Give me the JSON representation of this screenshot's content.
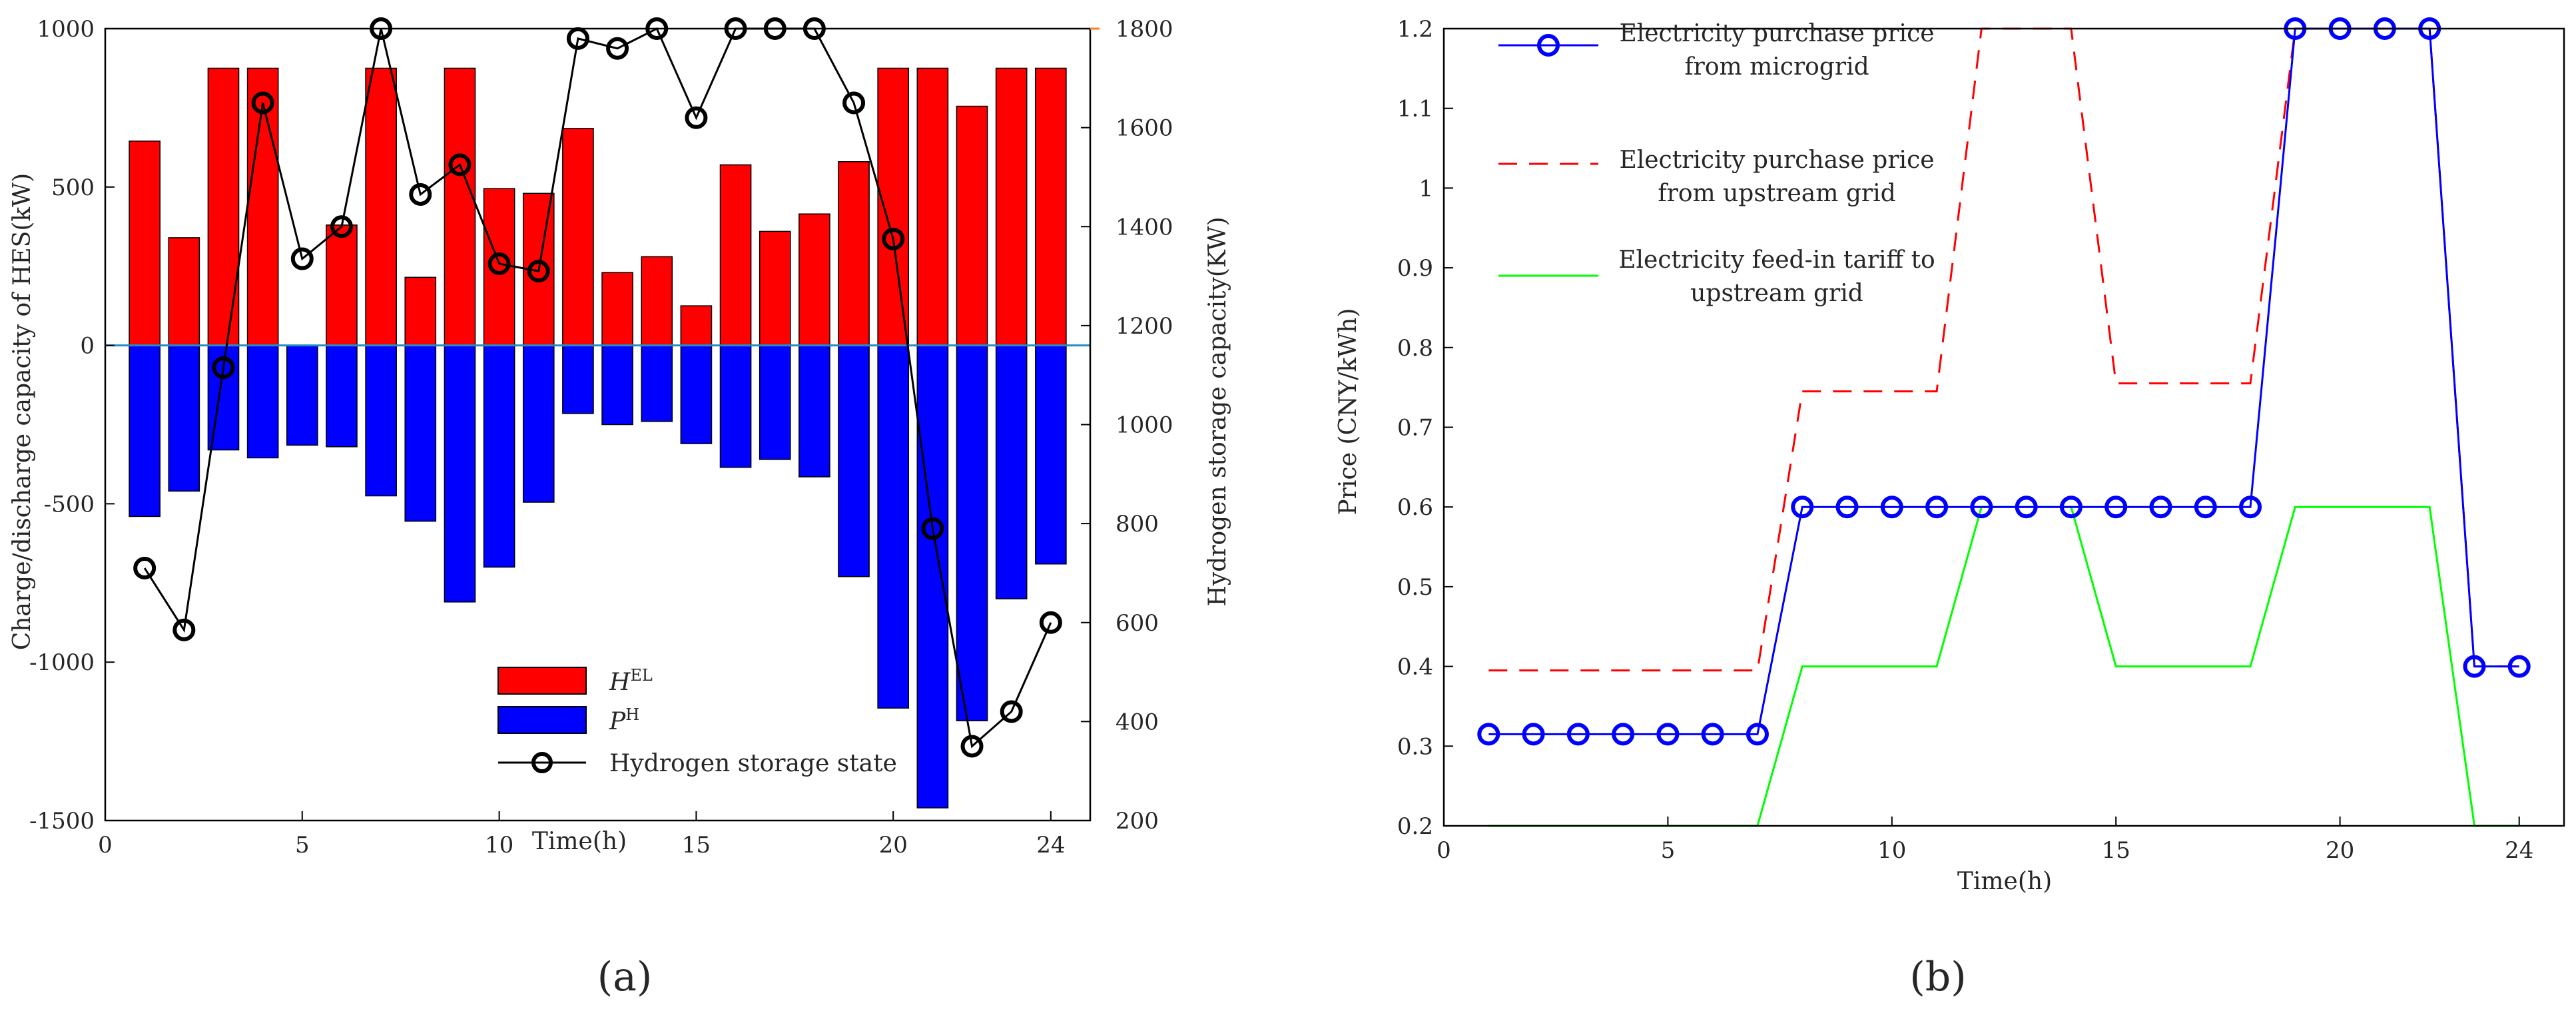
{
  "chart_data": [
    {
      "panel_label": "(a)",
      "type": "bar+line",
      "xlabel": "Time(h)",
      "ylabel": "Charge/discharge capacity of HES(kW)",
      "y2label": "Hydrogen storage capacity(KW)",
      "xlim": [
        0,
        25
      ],
      "ylim": [
        -1500,
        1000
      ],
      "y2lim": [
        200,
        1800
      ],
      "xticks": [
        0,
        5,
        10,
        15,
        20,
        24
      ],
      "yticks": [
        1000,
        500,
        0,
        -500,
        -1000,
        -1500
      ],
      "y2ticks": [
        1800,
        1600,
        1400,
        1200,
        1000,
        800,
        600,
        400,
        200
      ],
      "x": [
        1,
        2,
        3,
        4,
        5,
        6,
        7,
        8,
        9,
        10,
        11,
        12,
        13,
        14,
        15,
        16,
        17,
        18,
        19,
        20,
        21,
        22,
        23,
        24
      ],
      "series": [
        {
          "name": "H",
          "sup": "EL",
          "kind": "bar",
          "color": "#ff0000",
          "values": [
            645,
            340,
            875,
            875,
            0,
            380,
            875,
            215,
            875,
            495,
            480,
            685,
            230,
            280,
            125,
            570,
            360,
            415,
            580,
            875,
            875,
            755,
            875,
            875
          ]
        },
        {
          "name": "P",
          "sup": "H",
          "kind": "bar",
          "color": "#0000ff",
          "values": [
            -540,
            -460,
            -330,
            -355,
            -315,
            -320,
            -475,
            -555,
            -810,
            -700,
            -495,
            -215,
            -250,
            -240,
            -310,
            -385,
            -360,
            -415,
            -730,
            -1145,
            -1460,
            -1185,
            -800,
            -690
          ]
        },
        {
          "name": "Hydrogen storage state",
          "kind": "line",
          "axis": "right",
          "color": "#000000",
          "values": [
            710,
            585,
            1115,
            1650,
            1335,
            1400,
            1800,
            1465,
            1525,
            1325,
            1310,
            1780,
            1760,
            1800,
            1620,
            1800,
            1800,
            1800,
            1650,
            1375,
            790,
            350,
            420,
            600
          ]
        }
      ]
    },
    {
      "panel_label": "(b)",
      "type": "line",
      "xlabel": "Time(h)",
      "ylabel": "Price (CNY/kWh)",
      "xlim": [
        0,
        25
      ],
      "ylim": [
        0.2,
        1.2
      ],
      "xticks": [
        0,
        5,
        10,
        15,
        20,
        24
      ],
      "yticks": [
        "1.2",
        "1.1",
        "1",
        "0.9",
        "0.8",
        "0.7",
        "0.6",
        "0.5",
        "0.4",
        "0.3",
        "0.2"
      ],
      "x": [
        1,
        2,
        3,
        4,
        5,
        6,
        7,
        8,
        9,
        10,
        11,
        12,
        13,
        14,
        15,
        16,
        17,
        18,
        19,
        20,
        21,
        22,
        23,
        24
      ],
      "series": [
        {
          "name": "Electricity purchase price from microgrid",
          "legend_lines": [
            "Electricity purchase price",
            "from microgrid"
          ],
          "color": "#0000ff",
          "style": "solid-circle",
          "values": [
            0.315,
            0.315,
            0.315,
            0.315,
            0.315,
            0.315,
            0.315,
            0.6,
            0.6,
            0.6,
            0.6,
            0.6,
            0.6,
            0.6,
            0.6,
            0.6,
            0.6,
            0.6,
            1.2,
            1.2,
            1.2,
            1.2,
            0.4,
            0.4
          ]
        },
        {
          "name": "Electricity purchase price from upstream grid",
          "legend_lines": [
            "Electricity purchase price",
            "from upstream grid"
          ],
          "color": "#ff0000",
          "style": "dashed",
          "values": [
            0.395,
            0.395,
            0.395,
            0.395,
            0.395,
            0.395,
            0.395,
            0.745,
            0.745,
            0.745,
            0.745,
            1.2,
            1.2,
            1.2,
            0.755,
            0.755,
            0.755,
            0.755,
            1.2,
            1.2,
            1.2,
            1.2,
            0.4,
            0.4
          ]
        },
        {
          "name": "Electricity feed-in tariff to upstream grid",
          "legend_lines": [
            "Electricity feed-in tariff to",
            "upstream grid"
          ],
          "color": "#00ff00",
          "style": "solid",
          "values": [
            0.2,
            0.2,
            0.2,
            0.2,
            0.2,
            0.2,
            0.2,
            0.4,
            0.4,
            0.4,
            0.4,
            0.6,
            0.6,
            0.6,
            0.4,
            0.4,
            0.4,
            0.4,
            0.6,
            0.6,
            0.6,
            0.6,
            0.2,
            0.2
          ]
        }
      ]
    }
  ]
}
